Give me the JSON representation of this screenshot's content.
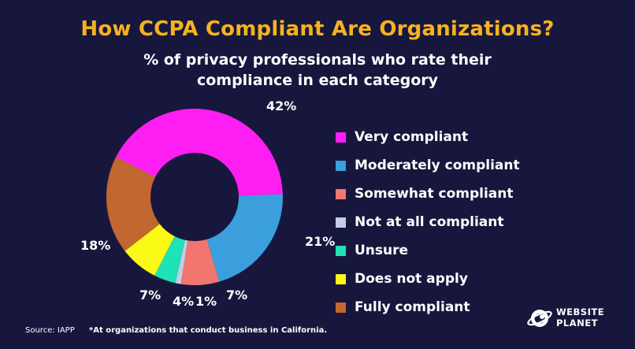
{
  "header": {
    "title": "How CCPA Compliant Are Organizations?",
    "subtitle_line1": "% of privacy professionals who rate their",
    "subtitle_line2": "compliance in each category"
  },
  "chart_data": {
    "type": "pie",
    "donut": true,
    "start_category": "Very compliant",
    "series": [
      {
        "label": "Very compliant",
        "value": 42,
        "display": "42%",
        "color": "#ff1ef2"
      },
      {
        "label": "Moderately compliant",
        "value": 21,
        "display": "21%",
        "color": "#3b9fdd"
      },
      {
        "label": "Somewhat compliant",
        "value": 7,
        "display": "7%",
        "color": "#f27670"
      },
      {
        "label": "Not at all compliant",
        "value": 1,
        "display": "1%",
        "color": "#c6cce6"
      },
      {
        "label": "Unsure",
        "value": 4,
        "display": "4%",
        "color": "#1fe2b7"
      },
      {
        "label": "Does not apply",
        "value": 7,
        "display": "7%",
        "color": "#fafa16"
      },
      {
        "label": "Fully compliant",
        "value": 18,
        "display": "18%",
        "color": "#c26730"
      }
    ],
    "legend_position": "right"
  },
  "footer": {
    "source": "Source: IAPP",
    "footnote": "*At organizations that conduct business in California."
  },
  "brand": {
    "line1": "WEBSITE",
    "line2": "PLANET",
    "icon": "planet-logo-icon"
  }
}
